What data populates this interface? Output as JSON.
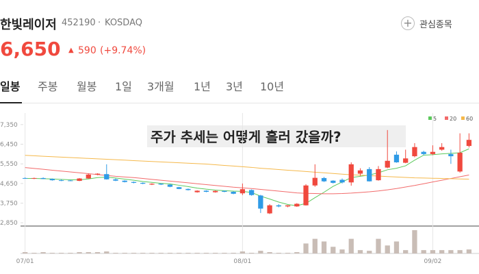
{
  "header": {
    "name": "한빛레이저",
    "code": "452190",
    "market": "KOSDAQ",
    "watch": "관심종목",
    "price": "6,650",
    "change": "590",
    "change_pct": "(+9.74%)",
    "tabs": [
      "일봉",
      "주봉",
      "월봉",
      "1일",
      "3개월",
      "1년",
      "3년",
      "10년"
    ]
  },
  "chart_data": {
    "type": "candlestick",
    "annotation": "주가 추세는 어떻게 흘러 갔을까?",
    "categories": [
      "07/01",
      null,
      null,
      null,
      null,
      null,
      null,
      null,
      null,
      null,
      null,
      null,
      null,
      null,
      null,
      null,
      null,
      null,
      null,
      null,
      null,
      null,
      null,
      null,
      "08/01",
      null,
      null,
      null,
      null,
      null,
      null,
      null,
      null,
      null,
      null,
      null,
      null,
      null,
      null,
      null,
      null,
      null,
      null,
      null,
      null,
      "09/02",
      null,
      null,
      null,
      null
    ],
    "open": [
      4900,
      4870,
      4900,
      4860,
      4800,
      4790,
      4770,
      4880,
      5060,
      5080,
      4840,
      4780,
      4720,
      4680,
      4600,
      4640,
      4600,
      4480,
      4400,
      4250,
      4320,
      4250,
      4310,
      4270,
      4200,
      4350,
      4100,
      3280,
      3650,
      3600,
      3600,
      3650,
      4560,
      4900,
      4780,
      4820,
      4700,
      5100,
      5310,
      4800,
      5380,
      5970,
      5600,
      5900,
      6100,
      6000,
      6200,
      6000,
      5200,
      6370
    ],
    "high": [
      4930,
      4920,
      4930,
      4880,
      4850,
      4820,
      4900,
      5100,
      5120,
      5530,
      4880,
      4800,
      4740,
      4700,
      4660,
      4660,
      4620,
      4500,
      4420,
      4340,
      4340,
      4330,
      4330,
      4290,
      4650,
      4380,
      4130,
      3700,
      3700,
      3660,
      3750,
      4620,
      5530,
      4950,
      4800,
      4880,
      5620,
      5350,
      5400,
      5450,
      7100,
      6120,
      6200,
      6500,
      6150,
      6400,
      6500,
      6200,
      6950,
      6950
    ],
    "low": [
      4870,
      4850,
      4850,
      4780,
      4760,
      4760,
      4760,
      4870,
      5030,
      4830,
      4760,
      4700,
      4660,
      4620,
      4580,
      4580,
      4480,
      4390,
      4330,
      4230,
      4250,
      4230,
      4250,
      4160,
      4120,
      4090,
      3300,
      3250,
      3560,
      3560,
      3580,
      3640,
      4500,
      4720,
      4650,
      4650,
      4550,
      5000,
      4740,
      4780,
      5350,
      5600,
      5580,
      5850,
      5950,
      5950,
      6150,
      5550,
      5150,
      6300
    ],
    "close": [
      4880,
      4900,
      4860,
      4800,
      4780,
      4770,
      4880,
      5060,
      5100,
      4840,
      4780,
      4720,
      4680,
      4640,
      4640,
      4600,
      4500,
      4400,
      4350,
      4320,
      4270,
      4310,
      4270,
      4180,
      4390,
      4120,
      3500,
      3650,
      3600,
      3650,
      3720,
      4560,
      4910,
      4750,
      4680,
      4700,
      5530,
      5250,
      4750,
      5310,
      5690,
      5620,
      5800,
      6320,
      6000,
      6100,
      6320,
      5900,
      6060,
      6650
    ],
    "volume": [
      2,
      1,
      2,
      1,
      1,
      1,
      2,
      2,
      2,
      3,
      1,
      1,
      1,
      1,
      1,
      1,
      1,
      1,
      1,
      1,
      1,
      1,
      1,
      1,
      3,
      1,
      4,
      2,
      1,
      1,
      2,
      15,
      22,
      18,
      10,
      6,
      22,
      5,
      4,
      22,
      12,
      18,
      5,
      35,
      5,
      5,
      5,
      5,
      5,
      6
    ],
    "up_color": "#f0493e",
    "down_color": "#2f9be6",
    "volume_color": "#c9bdb6",
    "series": [
      {
        "name": "5",
        "color": "#5bc95b",
        "values": [
          4880,
          4880,
          4870,
          4860,
          4840,
          4820,
          4820,
          4860,
          4920,
          4940,
          4900,
          4850,
          4800,
          4740,
          4700,
          4660,
          4630,
          4570,
          4510,
          4440,
          4390,
          4350,
          4320,
          4300,
          4290,
          4240,
          4070,
          3940,
          3800,
          3690,
          3630,
          3740,
          4000,
          4250,
          4520,
          4720,
          4920,
          4980,
          5040,
          5140,
          5280,
          5350,
          5460,
          5720,
          5950,
          5970,
          6010,
          6030,
          6060,
          6240
        ]
      },
      {
        "name": "20",
        "color": "#f26a6a",
        "values": [
          5380,
          5340,
          5300,
          5260,
          5220,
          5180,
          5140,
          5100,
          5060,
          5020,
          4980,
          4950,
          4920,
          4880,
          4840,
          4800,
          4760,
          4720,
          4680,
          4640,
          4600,
          4560,
          4520,
          4480,
          4450,
          4420,
          4380,
          4340,
          4300,
          4260,
          4220,
          4200,
          4190,
          4180,
          4180,
          4190,
          4210,
          4240,
          4270,
          4310,
          4360,
          4420,
          4490,
          4560,
          4640,
          4720,
          4800,
          4880,
          4960,
          5040
        ]
      },
      {
        "name": "60",
        "color": "#f5b84a",
        "values": [
          5940,
          5920,
          5900,
          5880,
          5860,
          5840,
          5820,
          5800,
          5780,
          5760,
          5740,
          5720,
          5700,
          5680,
          5660,
          5640,
          5620,
          5600,
          5580,
          5560,
          5540,
          5510,
          5480,
          5450,
          5420,
          5390,
          5350,
          5320,
          5290,
          5260,
          5230,
          5200,
          5170,
          5140,
          5110,
          5080,
          5050,
          5030,
          5010,
          4990,
          4970,
          4950,
          4930,
          4910,
          4900,
          4890,
          4880,
          4870,
          4860,
          4850
        ]
      }
    ],
    "ylim": [
      2700,
      7880
    ],
    "yticks": [
      {
        "value": 7350,
        "label": "7,350"
      },
      {
        "value": 6450,
        "label": "6,450"
      },
      {
        "value": 5550,
        "label": "5,550"
      },
      {
        "value": 4650,
        "label": "4,650"
      },
      {
        "value": 3750,
        "label": "3,750"
      },
      {
        "value": 2850,
        "label": "2,850"
      }
    ],
    "legend": "top-right"
  }
}
